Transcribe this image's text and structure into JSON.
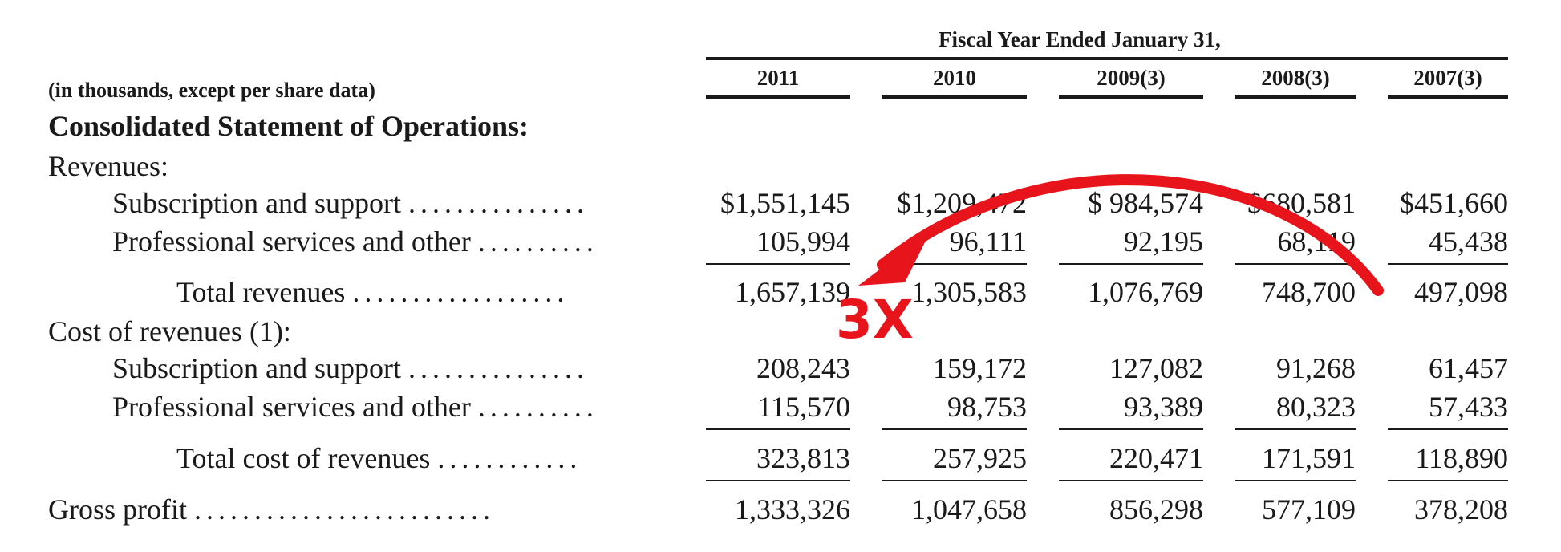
{
  "table": {
    "header_title": "Fiscal Year Ended January 31,",
    "units_note": "(in thousands, except per share data)",
    "section_title": "Consolidated Statement of Operations:",
    "revenues_label": "Revenues:",
    "cost_label": "Cost of revenues (1):",
    "years": [
      "2011",
      "2010",
      "2009(3)",
      "2008(3)",
      "2007(3)"
    ],
    "rows": [
      {
        "label": "Subscription and support",
        "dots": "...............",
        "values": [
          "$1,551,145",
          "$1,209,472",
          "$   984,574",
          "$680,581",
          "$451,660"
        ]
      },
      {
        "label": "Professional services and other",
        "dots": "..........",
        "values": [
          "105,994",
          "96,111",
          "92,195",
          "68,119",
          "45,438"
        ]
      },
      {
        "label": "Total revenues",
        "dots": "..................",
        "values": [
          "1,657,139",
          "1,305,583",
          "1,076,769",
          "748,700",
          "497,098"
        ]
      },
      {
        "label": "Subscription and support",
        "dots": "...............",
        "values": [
          "208,243",
          "159,172",
          "127,082",
          "91,268",
          "61,457"
        ]
      },
      {
        "label": "Professional services and other",
        "dots": "..........",
        "values": [
          "115,570",
          "98,753",
          "93,389",
          "80,323",
          "57,433"
        ]
      },
      {
        "label": "Total cost of revenues",
        "dots": "............",
        "values": [
          "323,813",
          "257,925",
          "220,471",
          "171,591",
          "118,890"
        ]
      },
      {
        "label": "Gross profit",
        "dots": ".........................",
        "values": [
          "1,333,326",
          "1,047,658",
          "856,298",
          "577,109",
          "378,208"
        ]
      }
    ]
  },
  "annotation": {
    "multiplier": "3X",
    "color": "#e8141c"
  }
}
